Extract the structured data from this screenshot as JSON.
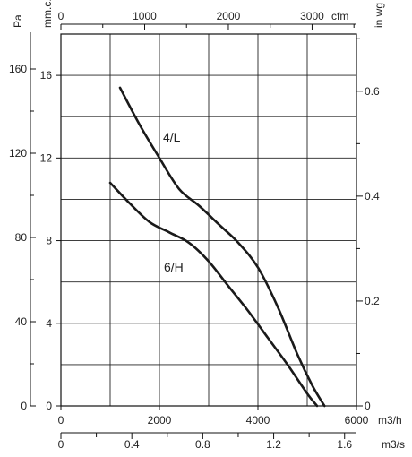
{
  "chart_data": {
    "type": "line",
    "title": "",
    "x_axes": {
      "m3h": {
        "label": "m3/h",
        "min": 0,
        "max": 6000,
        "ticks": [
          0,
          2000,
          4000,
          6000
        ],
        "tick_labels": [
          "0",
          "2000",
          "4000",
          "6000"
        ]
      },
      "cfm": {
        "label": "cfm",
        "min": 0,
        "max": 3530,
        "ticks": [
          0,
          1000,
          2000,
          3000
        ],
        "tick_labels": [
          "0",
          "1000",
          "2000",
          "3000"
        ]
      },
      "m3s": {
        "label": "m3/s",
        "min": 0,
        "max": 1.667,
        "ticks": [
          0,
          0.4,
          0.8,
          1.2,
          1.6
        ],
        "tick_labels": [
          "0",
          "0.4",
          "0.8",
          "1.2",
          "1.6"
        ]
      }
    },
    "y_axes": {
      "mmca": {
        "label": "mm.c.a.",
        "min": 0,
        "max": 18,
        "ticks": [
          0,
          4,
          8,
          12,
          16
        ],
        "tick_labels": [
          "0",
          "4",
          "8",
          "12",
          "16"
        ]
      },
      "pa": {
        "label": "Pa",
        "min": 0,
        "max": 176.6,
        "ticks": [
          0,
          40,
          80,
          120,
          160
        ],
        "tick_labels": [
          "0",
          "40",
          "80",
          "120",
          "160"
        ]
      },
      "inwg": {
        "label": "in wg",
        "min": 0,
        "max": 0.709,
        "ticks": [
          0,
          0.2,
          0.4,
          0.6
        ],
        "tick_labels": [
          "0",
          "0.2",
          "0.4",
          "0.6"
        ]
      }
    },
    "grid": true,
    "series": [
      {
        "name": "4/L",
        "x_unit": "m3/h",
        "y_unit": "mm.c.a.",
        "points": [
          [
            1200,
            15.4
          ],
          [
            1600,
            13.6
          ],
          [
            2000,
            12.0
          ],
          [
            2400,
            10.5
          ],
          [
            2800,
            9.7
          ],
          [
            3200,
            8.8
          ],
          [
            3600,
            7.9
          ],
          [
            4000,
            6.7
          ],
          [
            4400,
            4.8
          ],
          [
            4800,
            2.5
          ],
          [
            5100,
            1.0
          ],
          [
            5350,
            0.0
          ]
        ]
      },
      {
        "name": "6/H",
        "x_unit": "m3/h",
        "y_unit": "mm.c.a.",
        "points": [
          [
            1000,
            10.8
          ],
          [
            1400,
            9.8
          ],
          [
            1800,
            8.9
          ],
          [
            2200,
            8.4
          ],
          [
            2600,
            7.9
          ],
          [
            3000,
            7.0
          ],
          [
            3400,
            5.8
          ],
          [
            3800,
            4.6
          ],
          [
            4200,
            3.3
          ],
          [
            4600,
            2.0
          ],
          [
            5000,
            0.6
          ],
          [
            5200,
            0.0
          ]
        ]
      }
    ]
  }
}
